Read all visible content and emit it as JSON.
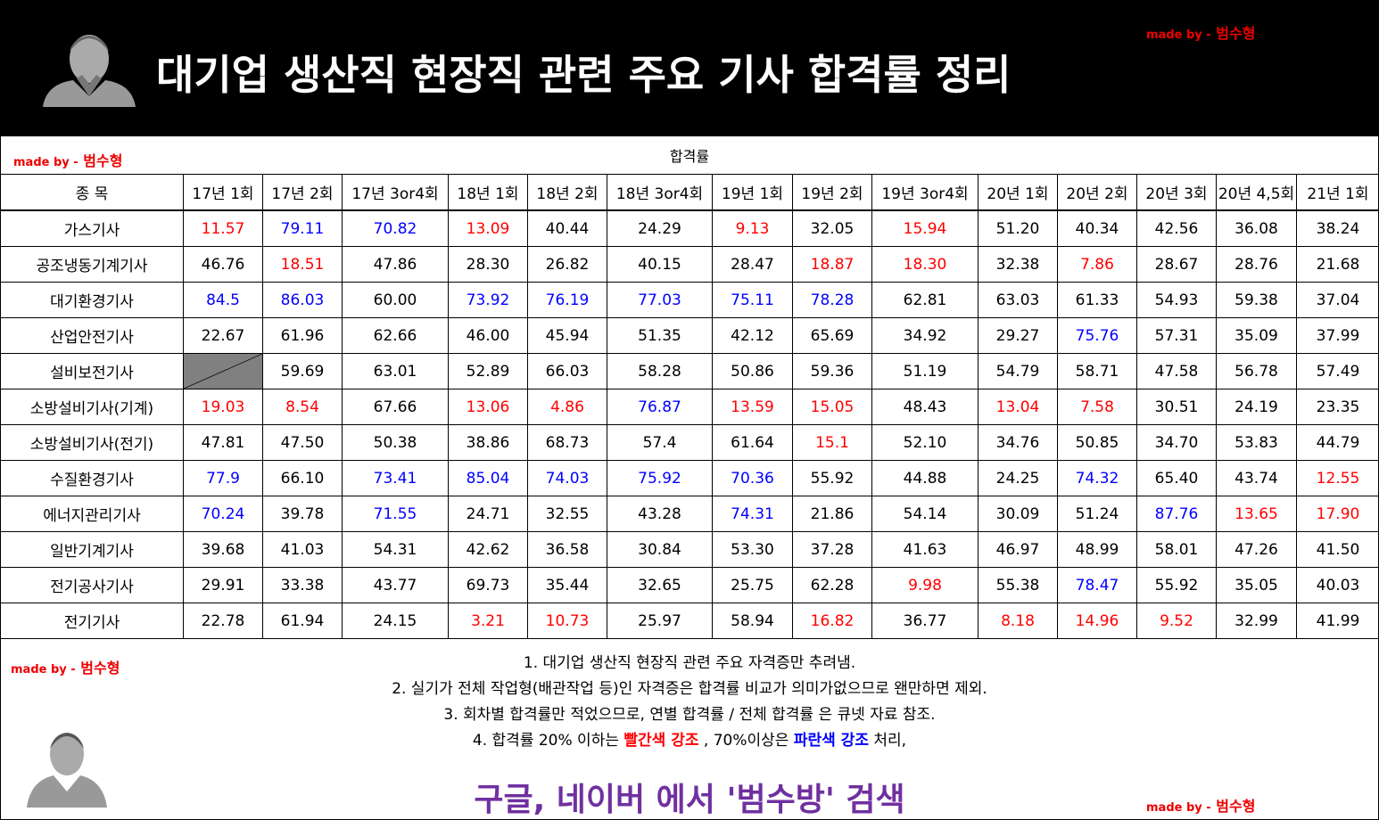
{
  "header": {
    "title": "대기업 생산직 현장직 관련 주요 기사 합격률 정리",
    "credit": {
      "prefix": "made by -",
      "name": "범수형"
    }
  },
  "table": {
    "credit": {
      "prefix": "made by -",
      "name": "범수형"
    },
    "caption": "합격률",
    "corner": "종 목",
    "columns": [
      "17년 1회",
      "17년 2회",
      "17년 3or4회",
      "18년 1회",
      "18년 2회",
      "18년 3or4회",
      "19년 1회",
      "19년 2회",
      "19년 3or4회",
      "20년 1회",
      "20년 2회",
      "20년 3회",
      "20년 4,5회",
      "21년 1회"
    ],
    "palette": {
      "k": "#000000",
      "r": "#ff0000",
      "b": "#0000ff"
    },
    "rows": [
      {
        "name": "가스기사",
        "values": [
          "11.57",
          "79.11",
          "70.82",
          "13.09",
          "40.44",
          "24.29",
          "9.13",
          "32.05",
          "15.94",
          "51.20",
          "40.34",
          "42.56",
          "36.08",
          "38.24"
        ],
        "colors": [
          "r",
          "b",
          "b",
          "r",
          "k",
          "k",
          "r",
          "k",
          "r",
          "k",
          "k",
          "k",
          "k",
          "k"
        ]
      },
      {
        "name": "공조냉동기계기사",
        "values": [
          "46.76",
          "18.51",
          "47.86",
          "28.30",
          "26.82",
          "40.15",
          "28.47",
          "18.87",
          "18.30",
          "32.38",
          "7.86",
          "28.67",
          "28.76",
          "21.68"
        ],
        "colors": [
          "k",
          "r",
          "k",
          "k",
          "k",
          "k",
          "k",
          "r",
          "r",
          "k",
          "r",
          "k",
          "k",
          "k"
        ]
      },
      {
        "name": "대기환경기사",
        "values": [
          "84.5",
          "86.03",
          "60.00",
          "73.92",
          "76.19",
          "77.03",
          "75.11",
          "78.28",
          "62.81",
          "63.03",
          "61.33",
          "54.93",
          "59.38",
          "37.04"
        ],
        "colors": [
          "b",
          "b",
          "k",
          "b",
          "b",
          "b",
          "b",
          "b",
          "k",
          "k",
          "k",
          "k",
          "k",
          "k"
        ]
      },
      {
        "name": "산업안전기사",
        "values": [
          "22.67",
          "61.96",
          "62.66",
          "46.00",
          "45.94",
          "51.35",
          "42.12",
          "65.69",
          "34.92",
          "29.27",
          "75.76",
          "57.31",
          "35.09",
          "37.99"
        ],
        "colors": [
          "k",
          "k",
          "k",
          "k",
          "k",
          "k",
          "k",
          "k",
          "k",
          "k",
          "b",
          "k",
          "k",
          "k"
        ]
      },
      {
        "name": "설비보전기사",
        "values": [
          null,
          "59.69",
          "63.01",
          "52.89",
          "66.03",
          "58.28",
          "50.86",
          "59.36",
          "51.19",
          "54.79",
          "58.71",
          "47.58",
          "56.78",
          "57.49"
        ],
        "colors": [
          null,
          "k",
          "k",
          "k",
          "k",
          "k",
          "k",
          "k",
          "k",
          "k",
          "k",
          "k",
          "k",
          "k"
        ]
      },
      {
        "name": "소방설비기사(기계)",
        "values": [
          "19.03",
          "8.54",
          "67.66",
          "13.06",
          "4.86",
          "76.87",
          "13.59",
          "15.05",
          "48.43",
          "13.04",
          "7.58",
          "30.51",
          "24.19",
          "23.35"
        ],
        "colors": [
          "r",
          "r",
          "k",
          "r",
          "r",
          "b",
          "r",
          "r",
          "k",
          "r",
          "r",
          "k",
          "k",
          "k"
        ]
      },
      {
        "name": "소방설비기사(전기)",
        "values": [
          "47.81",
          "47.50",
          "50.38",
          "38.86",
          "68.73",
          "57.4",
          "61.64",
          "15.1",
          "52.10",
          "34.76",
          "50.85",
          "34.70",
          "53.83",
          "44.79"
        ],
        "colors": [
          "k",
          "k",
          "k",
          "k",
          "k",
          "k",
          "k",
          "r",
          "k",
          "k",
          "k",
          "k",
          "k",
          "k"
        ]
      },
      {
        "name": "수질환경기사",
        "values": [
          "77.9",
          "66.10",
          "73.41",
          "85.04",
          "74.03",
          "75.92",
          "70.36",
          "55.92",
          "44.88",
          "24.25",
          "74.32",
          "65.40",
          "43.74",
          "12.55"
        ],
        "colors": [
          "b",
          "k",
          "b",
          "b",
          "b",
          "b",
          "b",
          "k",
          "k",
          "k",
          "b",
          "k",
          "k",
          "r"
        ]
      },
      {
        "name": "에너지관리기사",
        "values": [
          "70.24",
          "39.78",
          "71.55",
          "24.71",
          "32.55",
          "43.28",
          "74.31",
          "21.86",
          "54.14",
          "30.09",
          "51.24",
          "87.76",
          "13.65",
          "17.90"
        ],
        "colors": [
          "b",
          "k",
          "b",
          "k",
          "k",
          "k",
          "b",
          "k",
          "k",
          "k",
          "k",
          "b",
          "r",
          "r"
        ]
      },
      {
        "name": "일반기계기사",
        "values": [
          "39.68",
          "41.03",
          "54.31",
          "42.62",
          "36.58",
          "30.84",
          "53.30",
          "37.28",
          "41.63",
          "46.97",
          "48.99",
          "58.01",
          "47.26",
          "41.50"
        ],
        "colors": [
          "k",
          "k",
          "k",
          "k",
          "k",
          "k",
          "k",
          "k",
          "k",
          "k",
          "k",
          "k",
          "k",
          "k"
        ]
      },
      {
        "name": "전기공사기사",
        "values": [
          "29.91",
          "33.38",
          "43.77",
          "69.73",
          "35.44",
          "32.65",
          "25.75",
          "62.28",
          "9.98",
          "55.38",
          "78.47",
          "55.92",
          "35.05",
          "40.03"
        ],
        "colors": [
          "k",
          "k",
          "k",
          "k",
          "k",
          "k",
          "k",
          "k",
          "r",
          "k",
          "b",
          "k",
          "k",
          "k"
        ]
      },
      {
        "name": "전기기사",
        "values": [
          "22.78",
          "61.94",
          "24.15",
          "3.21",
          "10.73",
          "25.97",
          "58.94",
          "16.82",
          "36.77",
          "8.18",
          "14.96",
          "9.52",
          "32.99",
          "41.99"
        ],
        "colors": [
          "k",
          "k",
          "k",
          "r",
          "r",
          "k",
          "k",
          "r",
          "k",
          "r",
          "r",
          "r",
          "k",
          "k"
        ]
      }
    ]
  },
  "notes": {
    "credit": {
      "prefix": "made by -",
      "name": "범수형"
    },
    "lines": [
      [
        {
          "text": "1. 대기업 생산직 현장직 관련 주요 자격증만 추려냄.",
          "color": "#000000"
        }
      ],
      [
        {
          "text": "2. 실기가 전체 작업형(배관작업 등)인 자격증은 합격률 비교가 의미가없으므로 왠만하면 제외.",
          "color": "#000000"
        }
      ],
      [
        {
          "text": "3. 회차별 합격률만 적었으므로, 연별 합격률 / 전체 합격률 은 큐넷 자료 참조.",
          "color": "#000000"
        }
      ],
      [
        {
          "text": "4. 합격률 20% 이하는 ",
          "color": "#000000"
        },
        {
          "text": "빨간색 강조",
          "color": "#ff0000"
        },
        {
          "text": " , 70%이상은 ",
          "color": "#000000"
        },
        {
          "text": "파란색 강조",
          "color": "#0000ff"
        },
        {
          "text": " 처리,",
          "color": "#000000"
        }
      ]
    ]
  },
  "footer": {
    "search": "구글, 네이버 에서 '범수방' 검색",
    "credit": {
      "prefix": "made by -",
      "name": "범수형"
    }
  }
}
